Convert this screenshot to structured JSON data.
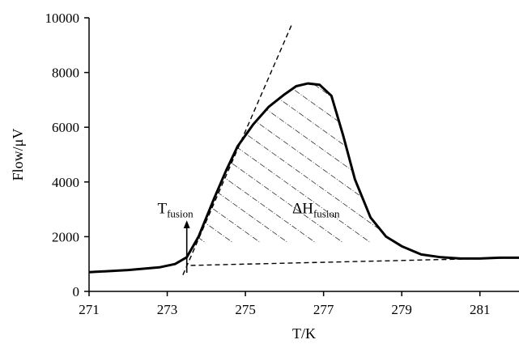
{
  "chart_data": {
    "type": "line",
    "title": "",
    "xlabel": "T/K",
    "ylabel": "Flow/μV",
    "xlim": [
      271,
      282
    ],
    "ylim": [
      0,
      10000
    ],
    "xticks": [
      271,
      273,
      275,
      277,
      279,
      281
    ],
    "yticks": [
      0,
      2000,
      4000,
      6000,
      8000,
      10000
    ],
    "grid": false,
    "legend": "none",
    "series": [
      {
        "style": "solid-thick",
        "x": [
          271.0,
          272.0,
          272.8,
          273.2,
          273.5,
          273.8,
          274.2,
          274.5,
          274.8,
          275.2,
          275.6,
          276.0,
          276.3,
          276.6,
          276.9,
          277.2,
          277.5,
          277.8,
          278.2,
          278.6,
          279.0,
          279.5,
          280.0,
          280.5,
          281.0,
          281.5,
          282.0
        ],
        "y": [
          700,
          780,
          880,
          1000,
          1250,
          2000,
          3400,
          4400,
          5300,
          6100,
          6750,
          7200,
          7500,
          7600,
          7550,
          7150,
          5700,
          4100,
          2700,
          2000,
          1650,
          1350,
          1250,
          1200,
          1200,
          1230,
          1230
        ]
      },
      {
        "style": "dashed",
        "x": [
          273.4,
          276.2
        ],
        "y": [
          600,
          9800
        ]
      },
      {
        "style": "dashed",
        "x": [
          273.6,
          282.0
        ],
        "y": [
          950,
          1230
        ]
      }
    ],
    "annotations": [
      {
        "type": "text",
        "main": "T",
        "sub": "fusion",
        "x": 272.75,
        "y": 2850
      },
      {
        "type": "text",
        "main": "ΔH",
        "sub": "fusion",
        "x": 276.2,
        "y": 2850
      },
      {
        "type": "arrow",
        "x": 273.5,
        "y_from": 680,
        "y_to": 2450
      },
      {
        "type": "hatch",
        "x_from": 273.6,
        "x_to": 279.5
      }
    ]
  }
}
